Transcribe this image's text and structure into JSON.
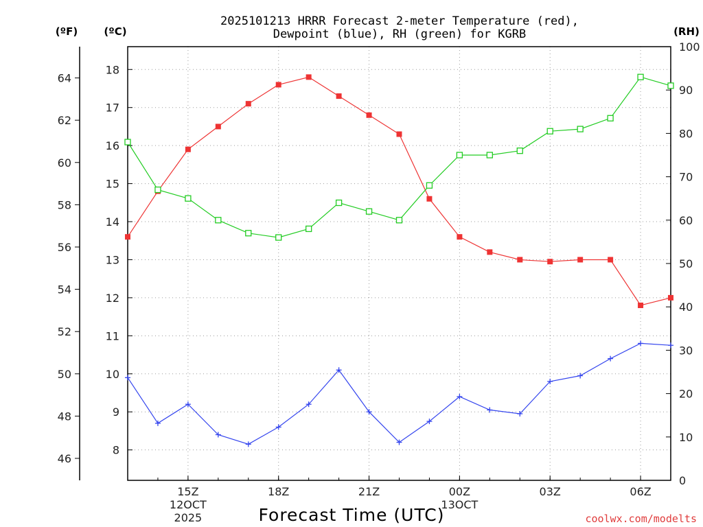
{
  "chart_data": {
    "type": "line",
    "title": [
      "2025101213 HRRR Forecast 2-meter Temperature (red),",
      "Dewpoint (blue), RH (green) for KGRB"
    ],
    "xlabel": "Forecast Time (UTC)",
    "credit": "coolwx.com/modelts",
    "units": {
      "fahrenheit": "(ºF)",
      "celsius": "(ºC)",
      "rh": "(RH)"
    },
    "x_hours": [
      13,
      14,
      15,
      16,
      17,
      18,
      19,
      20,
      21,
      22,
      23,
      24,
      25,
      26,
      27,
      28,
      29,
      30,
      31
    ],
    "x_range": [
      13,
      31
    ],
    "x_ticks": [
      {
        "hour": 15,
        "lines": [
          "15Z",
          "12OCT",
          "2025"
        ]
      },
      {
        "hour": 18,
        "lines": [
          "18Z"
        ]
      },
      {
        "hour": 21,
        "lines": [
          "21Z"
        ]
      },
      {
        "hour": 24,
        "lines": [
          "00Z",
          "13OCT"
        ]
      },
      {
        "hour": 27,
        "lines": [
          "03Z"
        ]
      },
      {
        "hour": 30,
        "lines": [
          "06Z"
        ]
      }
    ],
    "celsius_range": [
      7.2,
      18.6
    ],
    "celsius_ticks": [
      8,
      9,
      10,
      11,
      12,
      13,
      14,
      15,
      16,
      17,
      18
    ],
    "fahrenheit_ticks": [
      46,
      48,
      50,
      52,
      54,
      56,
      58,
      60,
      62,
      64
    ],
    "rh_range": [
      0,
      100
    ],
    "rh_ticks": [
      0,
      10,
      20,
      30,
      40,
      50,
      60,
      70,
      80,
      90,
      100
    ],
    "series": [
      {
        "name": "2-meter Temperature",
        "axis": "celsius",
        "color": "#ee3333",
        "marker": "filled-square",
        "values": [
          13.6,
          14.8,
          15.9,
          16.5,
          17.1,
          17.6,
          17.8,
          17.3,
          16.8,
          16.3,
          14.6,
          13.6,
          13.2,
          13.0,
          12.95,
          13.0,
          13.0,
          11.8,
          12.0
        ]
      },
      {
        "name": "Dewpoint",
        "axis": "celsius",
        "color": "#3344ee",
        "marker": "plus",
        "values": [
          9.9,
          8.7,
          9.2,
          8.4,
          8.15,
          8.6,
          9.2,
          10.1,
          9.0,
          8.2,
          8.75,
          9.4,
          9.05,
          8.95,
          9.8,
          9.95,
          10.4,
          10.8,
          10.75
        ]
      },
      {
        "name": "RH",
        "axis": "rh",
        "color": "#22cc22",
        "marker": "open-square",
        "values": [
          78,
          67,
          65,
          60,
          57,
          56,
          58,
          64,
          62,
          60,
          68,
          75,
          75,
          76,
          80.5,
          81,
          83.5,
          93,
          91
        ]
      }
    ]
  }
}
